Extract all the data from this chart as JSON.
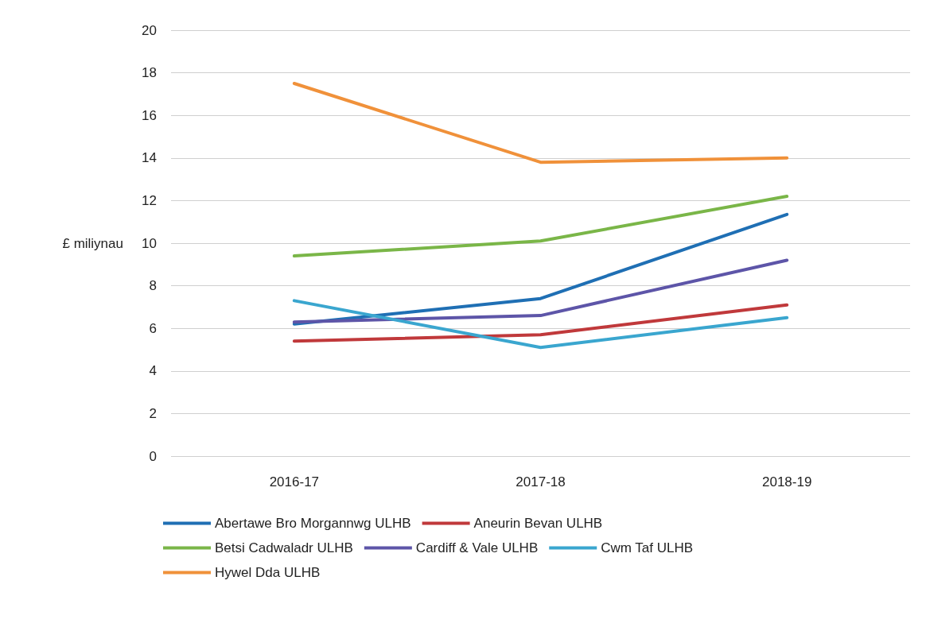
{
  "chart_data": {
    "type": "line",
    "ylabel": "£ miliynau",
    "categories": [
      "2016-17",
      "2017-18",
      "2018-19"
    ],
    "series": [
      {
        "name": "Abertawe Bro Morgannwg ULHB",
        "color": "#1f6fb4",
        "values": [
          6.2,
          7.4,
          11.35
        ]
      },
      {
        "name": "Aneurin Bevan ULHB",
        "color": "#c0393b",
        "values": [
          5.4,
          5.7,
          7.1
        ]
      },
      {
        "name": "Betsi Cadwaladr ULHB",
        "color": "#7ab648",
        "values": [
          9.4,
          10.1,
          12.2
        ]
      },
      {
        "name": "Cardiff & Vale ULHB",
        "color": "#5d55a8",
        "values": [
          6.3,
          6.6,
          9.2
        ]
      },
      {
        "name": "Cwm Taf ULHB",
        "color": "#3aa6cf",
        "values": [
          7.3,
          5.1,
          6.5
        ]
      },
      {
        "name": "Hywel Dda ULHB",
        "color": "#f0913a",
        "values": [
          17.5,
          13.8,
          14.0
        ]
      }
    ],
    "ylim": [
      0,
      20
    ],
    "yticks": [
      0,
      2,
      4,
      6,
      8,
      10,
      12,
      14,
      16,
      18,
      20
    ],
    "grid": "y",
    "legend": "bottom",
    "marker": "none"
  }
}
